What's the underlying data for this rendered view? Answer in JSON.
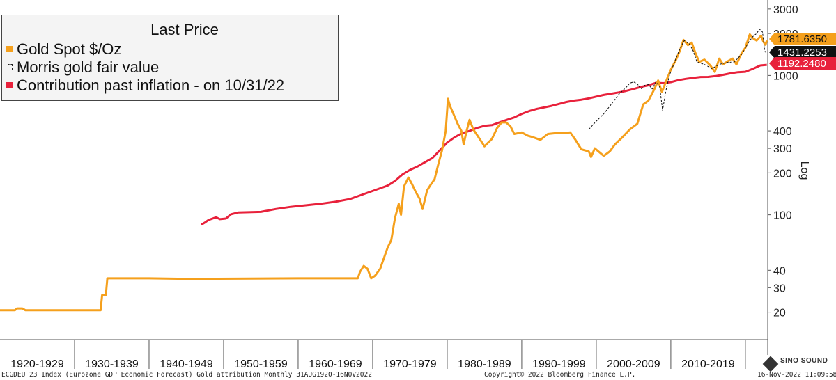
{
  "chart_data": {
    "type": "line",
    "title": "",
    "legend": {
      "title": "Last Price",
      "placement": "top-left",
      "entries": [
        {
          "label": "Gold Spot $/Oz",
          "color": "#f5a01c",
          "style": "solid"
        },
        {
          "label": "Morris gold fair value",
          "color": "#111111",
          "style": "dashed"
        },
        {
          "label": "Contribution past inflation -  on 10/31/22",
          "color": "#e8213b",
          "style": "solid"
        }
      ]
    },
    "x_categories": [
      "1920-1929",
      "1930-1939",
      "1940-1949",
      "1950-1959",
      "1960-1969",
      "1970-1979",
      "1980-1989",
      "1990-1999",
      "2000-2009",
      "2010-2019"
    ],
    "xlim": [
      1920,
      2023
    ],
    "y_scale": "log",
    "ylim": [
      16,
      3100
    ],
    "y_ticks": [
      20,
      30,
      40,
      100,
      200,
      300,
      400,
      1000,
      2000,
      3000
    ],
    "y_axis_label": "Log",
    "grid": false,
    "series": [
      {
        "name": "Gold Spot $/Oz",
        "color": "#f5a01c",
        "points": [
          [
            1920,
            20.67
          ],
          [
            1922,
            20.67
          ],
          [
            1922.3,
            21.3
          ],
          [
            1923,
            21.3
          ],
          [
            1923.4,
            20.67
          ],
          [
            1933.5,
            20.67
          ],
          [
            1933.7,
            26.5
          ],
          [
            1934.2,
            26.5
          ],
          [
            1934.4,
            35.0
          ],
          [
            1940,
            35.0
          ],
          [
            1945,
            34.7
          ],
          [
            1960,
            35.0
          ],
          [
            1968,
            35.0
          ],
          [
            1968.3,
            39.0
          ],
          [
            1968.8,
            43.0
          ],
          [
            1969.3,
            41.0
          ],
          [
            1969.8,
            35.0
          ],
          [
            1970.3,
            36.5
          ],
          [
            1971,
            41.0
          ],
          [
            1972,
            58.0
          ],
          [
            1972.5,
            66.0
          ],
          [
            1973,
            95.0
          ],
          [
            1973.5,
            120.0
          ],
          [
            1973.8,
            100.0
          ],
          [
            1974.2,
            160.0
          ],
          [
            1974.8,
            185.0
          ],
          [
            1975.3,
            165.0
          ],
          [
            1975.8,
            145.0
          ],
          [
            1976.3,
            130.0
          ],
          [
            1976.7,
            110.0
          ],
          [
            1977.3,
            150.0
          ],
          [
            1977.8,
            165.0
          ],
          [
            1978.3,
            180.0
          ],
          [
            1978.8,
            230.0
          ],
          [
            1979.3,
            290.0
          ],
          [
            1979.8,
            400.0
          ],
          [
            1980.1,
            680.0
          ],
          [
            1980.4,
            600.0
          ],
          [
            1980.9,
            520.0
          ],
          [
            1981.4,
            450.0
          ],
          [
            1981.9,
            400.0
          ],
          [
            1982.2,
            320.0
          ],
          [
            1982.6,
            400.0
          ],
          [
            1983.0,
            480.0
          ],
          [
            1983.5,
            410.0
          ],
          [
            1984.2,
            360.0
          ],
          [
            1985,
            310.0
          ],
          [
            1985.5,
            330.0
          ],
          [
            1986,
            350.0
          ],
          [
            1986.7,
            420.0
          ],
          [
            1987.3,
            460.0
          ],
          [
            1987.9,
            460.0
          ],
          [
            1988.5,
            430.0
          ],
          [
            1989,
            380.0
          ],
          [
            1990,
            390.0
          ],
          [
            1990.8,
            370.0
          ],
          [
            1991.5,
            360.0
          ],
          [
            1992.5,
            345.0
          ],
          [
            1993.5,
            380.0
          ],
          [
            1994.5,
            385.0
          ],
          [
            1995.5,
            385.0
          ],
          [
            1996.5,
            390.0
          ],
          [
            1997.2,
            345.0
          ],
          [
            1998,
            295.0
          ],
          [
            1999,
            285.0
          ],
          [
            1999.3,
            260.0
          ],
          [
            1999.8,
            300.0
          ],
          [
            2000.3,
            285.0
          ],
          [
            2001,
            265.0
          ],
          [
            2001.8,
            285.0
          ],
          [
            2002.5,
            320.0
          ],
          [
            2003.5,
            360.0
          ],
          [
            2004.5,
            410.0
          ],
          [
            2005.5,
            450.0
          ],
          [
            2006.3,
            620.0
          ],
          [
            2007,
            660.0
          ],
          [
            2007.8,
            800.0
          ],
          [
            2008.3,
            920.0
          ],
          [
            2008.8,
            760.0
          ],
          [
            2009.5,
            950.0
          ],
          [
            2010,
            1100.0
          ],
          [
            2010.7,
            1300.0
          ],
          [
            2011.2,
            1500.0
          ],
          [
            2011.7,
            1800.0
          ],
          [
            2012.3,
            1650.0
          ],
          [
            2012.8,
            1720.0
          ],
          [
            2013.3,
            1450.0
          ],
          [
            2013.8,
            1250.0
          ],
          [
            2014.5,
            1300.0
          ],
          [
            2015.3,
            1180.0
          ],
          [
            2015.9,
            1060.0
          ],
          [
            2016.5,
            1320.0
          ],
          [
            2017,
            1200.0
          ],
          [
            2017.8,
            1280.0
          ],
          [
            2018.3,
            1320.0
          ],
          [
            2018.8,
            1200.0
          ],
          [
            2019.5,
            1450.0
          ],
          [
            2020,
            1580.0
          ],
          [
            2020.6,
            1970.0
          ],
          [
            2021,
            1850.0
          ],
          [
            2021.5,
            1780.0
          ],
          [
            2022.1,
            1930.0
          ],
          [
            2022.4,
            1750.0
          ],
          [
            2022.7,
            1660.0
          ],
          [
            2022.88,
            1781.635
          ]
        ]
      },
      {
        "name": "Morris gold fair value",
        "color": "#111111",
        "points": [
          [
            1999,
            410.0
          ],
          [
            2000,
            470.0
          ],
          [
            2001,
            530.0
          ],
          [
            2002,
            620.0
          ],
          [
            2003,
            730.0
          ],
          [
            2004,
            820.0
          ],
          [
            2004.5,
            880.0
          ],
          [
            2005,
            900.0
          ],
          [
            2005.5,
            870.0
          ],
          [
            2006,
            800.0
          ],
          [
            2006.5,
            850.0
          ],
          [
            2007,
            860.0
          ],
          [
            2007.5,
            800.0
          ],
          [
            2008,
            900.0
          ],
          [
            2008.5,
            830.0
          ],
          [
            2008.9,
            560.0
          ],
          [
            2009.3,
            760.0
          ],
          [
            2009.8,
            1000.0
          ],
          [
            2010.5,
            1250.0
          ],
          [
            2011.2,
            1550.0
          ],
          [
            2011.8,
            1780.0
          ],
          [
            2012.5,
            1680.0
          ],
          [
            2013,
            1500.0
          ],
          [
            2013.5,
            1250.0
          ],
          [
            2014.5,
            1200.0
          ],
          [
            2015.5,
            1120.0
          ],
          [
            2016.5,
            1200.0
          ],
          [
            2017.5,
            1240.0
          ],
          [
            2018.5,
            1250.0
          ],
          [
            2019.5,
            1420.0
          ],
          [
            2020.5,
            1750.0
          ],
          [
            2021,
            1900.0
          ],
          [
            2021.5,
            2000.0
          ],
          [
            2021.9,
            2150.0
          ],
          [
            2022.3,
            2050.0
          ],
          [
            2022.6,
            1500.0
          ],
          [
            2022.88,
            1431.2253
          ]
        ]
      },
      {
        "name": "Contribution past inflation -  on 10/31/22",
        "color": "#e8213b",
        "points": [
          [
            1947,
            85.0
          ],
          [
            1947.5,
            88.0
          ],
          [
            1948,
            92.0
          ],
          [
            1949,
            96.0
          ],
          [
            1949.5,
            93.0
          ],
          [
            1950.3,
            94.0
          ],
          [
            1951,
            101.0
          ],
          [
            1952,
            104.0
          ],
          [
            1955,
            105.0
          ],
          [
            1957,
            110.0
          ],
          [
            1959,
            114.0
          ],
          [
            1961,
            117.0
          ],
          [
            1963,
            120.0
          ],
          [
            1965,
            124.0
          ],
          [
            1967,
            130.0
          ],
          [
            1969,
            142.0
          ],
          [
            1971,
            155.0
          ],
          [
            1972,
            162.0
          ],
          [
            1973,
            175.0
          ],
          [
            1974,
            195.0
          ],
          [
            1975,
            210.0
          ],
          [
            1976,
            222.0
          ],
          [
            1977,
            238.0
          ],
          [
            1978,
            255.0
          ],
          [
            1979,
            290.0
          ],
          [
            1980,
            330.0
          ],
          [
            1981,
            360.0
          ],
          [
            1982,
            385.0
          ],
          [
            1983,
            400.0
          ],
          [
            1984,
            420.0
          ],
          [
            1985,
            435.0
          ],
          [
            1986,
            440.0
          ],
          [
            1987,
            460.0
          ],
          [
            1988,
            480.0
          ],
          [
            1989,
            500.0
          ],
          [
            1990,
            530.0
          ],
          [
            1991,
            555.0
          ],
          [
            1992,
            575.0
          ],
          [
            1993,
            590.0
          ],
          [
            1994,
            605.0
          ],
          [
            1995,
            625.0
          ],
          [
            1996,
            645.0
          ],
          [
            1997,
            660.0
          ],
          [
            1998,
            670.0
          ],
          [
            1999,
            685.0
          ],
          [
            2000,
            705.0
          ],
          [
            2001,
            725.0
          ],
          [
            2002,
            740.0
          ],
          [
            2003,
            755.0
          ],
          [
            2004,
            775.0
          ],
          [
            2005,
            800.0
          ],
          [
            2006,
            828.0
          ],
          [
            2007,
            850.0
          ],
          [
            2008,
            885.0
          ],
          [
            2009,
            880.0
          ],
          [
            2010,
            895.0
          ],
          [
            2011,
            925.0
          ],
          [
            2012,
            945.0
          ],
          [
            2013,
            960.0
          ],
          [
            2014,
            975.0
          ],
          [
            2015,
            976.0
          ],
          [
            2016,
            990.0
          ],
          [
            2017,
            1010.0
          ],
          [
            2018,
            1035.0
          ],
          [
            2019,
            1055.0
          ],
          [
            2020,
            1063.0
          ],
          [
            2021,
            1115.0
          ],
          [
            2022,
            1180.0
          ],
          [
            2022.88,
            1192.248
          ]
        ]
      }
    ],
    "last_value_tags": [
      {
        "value": "1781.6350",
        "bg": "#f5a01c",
        "fg": "#111111",
        "y": 1781.635
      },
      {
        "value": "1431.2253",
        "bg": "#111111",
        "fg": "#ffffff",
        "y": 1431.2253
      },
      {
        "value": "1192.2480",
        "bg": "#e8213b",
        "fg": "#ffffff",
        "y": 1192.248
      }
    ]
  },
  "footer": {
    "left": "ECGDEU 23 Index (Eurozone GDP Economic Forecast) Gold attribution  Monthly 31AUG1920-16NOV2022",
    "center": "Copyright© 2022 Bloomberg Finance L.P.",
    "right": "16-Nov-2022 11:09:58"
  },
  "watermark": {
    "text": "SINO SOUND"
  }
}
